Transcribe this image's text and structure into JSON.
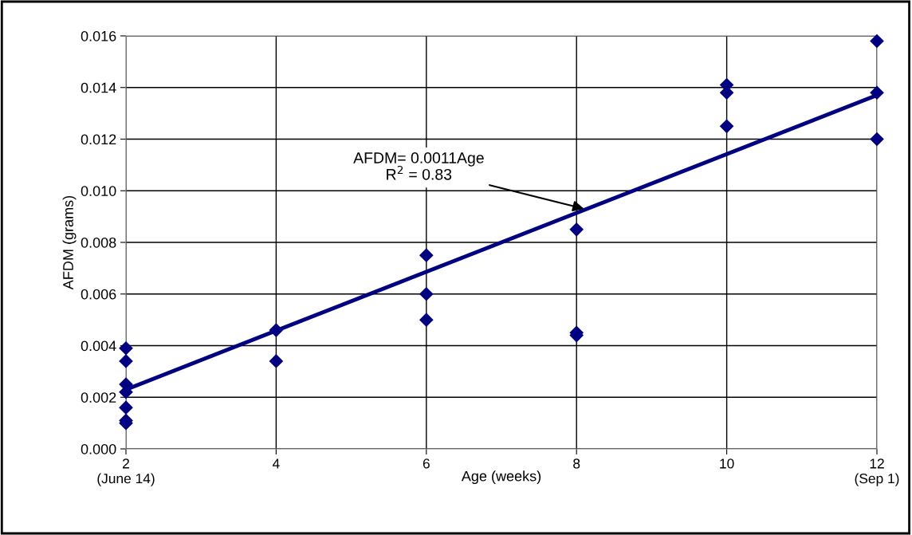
{
  "chart_data": {
    "type": "scatter",
    "xlabel": "Age (weeks)",
    "ylabel": "AFDM (grams)",
    "xlim": [
      2,
      12
    ],
    "xticks": [
      {
        "value": 2,
        "label": "2\n(June 14)"
      },
      4,
      6,
      8,
      10,
      {
        "value": 12,
        "label": "12\n(Sep 1)"
      }
    ],
    "ylim": [
      0,
      0.016
    ],
    "yticks": [
      {
        "value": 0,
        "label": "0.000"
      },
      {
        "value": 0.002,
        "label": "0.002"
      },
      {
        "value": 0.004,
        "label": "0.004"
      },
      {
        "value": 0.006,
        "label": "0.006"
      },
      {
        "value": 0.008,
        "label": "0.008"
      },
      {
        "value": 0.01,
        "label": "0.010"
      },
      {
        "value": 0.012,
        "label": "0.012"
      },
      {
        "value": 0.014,
        "label": "0.014"
      },
      {
        "value": 0.016,
        "label": "0.016"
      }
    ],
    "grid": true,
    "series": [
      {
        "marker": "diamond",
        "color": "#000080",
        "x": [
          2,
          2,
          2,
          2,
          2,
          2,
          2,
          4,
          4,
          6,
          6,
          6,
          8,
          8,
          8,
          10,
          10,
          10,
          12,
          12,
          12
        ],
        "values": [
          0.0039,
          0.0034,
          0.0025,
          0.0022,
          0.0016,
          0.0011,
          0.001,
          0.0046,
          0.0034,
          0.0075,
          0.006,
          0.005,
          0.0085,
          0.0045,
          0.0044,
          0.0141,
          0.0138,
          0.0125,
          0.0158,
          0.0138,
          0.012
        ]
      },
      {
        "type": "line",
        "color": "#000080",
        "x": [
          2,
          12
        ],
        "values": [
          0.0023,
          0.0137
        ]
      }
    ],
    "annotations": [
      {
        "text": "AFDM= 0.0011Age\nR$^{2}$ = 0.83",
        "x": 8.1,
        "y": 0.0093
      }
    ]
  }
}
